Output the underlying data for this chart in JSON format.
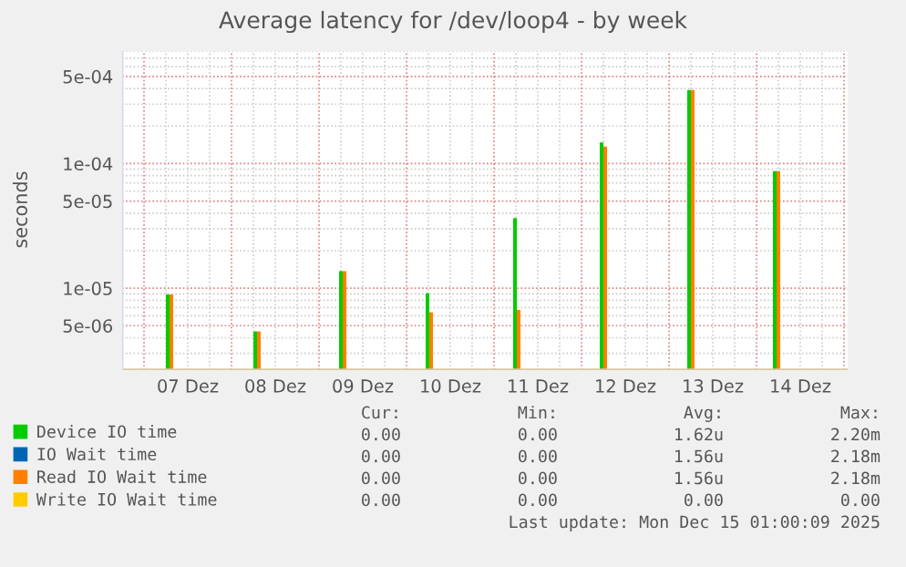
{
  "chart_data": {
    "type": "bar",
    "title": "Average latency for /dev/loop4 - by week",
    "ylabel": "seconds",
    "x": [
      "2025-12-07T07:00",
      "2025-12-08T07:00",
      "2025-12-09T06:30",
      "2025-12-10T06:15",
      "2025-12-11T06:15",
      "2025-12-12T06:00",
      "2025-12-13T06:00",
      "2025-12-14T05:30"
    ],
    "series": [
      {
        "name": "Device IO time",
        "color": "#00cc00",
        "values": [
          8.9e-06,
          4.5e-06,
          1.37e-05,
          9.1e-06,
          3.65e-05,
          0.000148,
          0.00039,
          8.7e-05
        ]
      },
      {
        "name": "IO Wait time",
        "color": "#0066b3",
        "values": [
          null,
          null,
          null,
          null,
          null,
          null,
          null,
          null
        ]
      },
      {
        "name": "Read IO Wait time",
        "color": "#ff8000",
        "values": [
          8.9e-06,
          4.5e-06,
          1.37e-05,
          6.4e-06,
          6.7e-06,
          0.000137,
          0.00039,
          8.7e-05
        ]
      },
      {
        "name": "Write IO Wait time",
        "color": "#ffcc00",
        "values": [
          null,
          null,
          null,
          null,
          null,
          null,
          null,
          null
        ]
      }
    ],
    "log": "y",
    "ylim": [
      2.2e-06,
      0.0008
    ],
    "yticks": [
      {
        "value": 5e-06,
        "label": "5e-06"
      },
      {
        "value": 1e-05,
        "label": "1e-05"
      },
      {
        "value": 5e-05,
        "label": "5e-05"
      },
      {
        "value": 0.0001,
        "label": "1e-04"
      },
      {
        "value": 0.0005,
        "label": "5e-04"
      }
    ],
    "xlim": [
      "2025-12-06T18:00",
      "2025-12-15T01:00"
    ],
    "xticks": [
      {
        "value": "2025-12-07T12:00",
        "label": "07 Dez"
      },
      {
        "value": "2025-12-08T12:00",
        "label": "08 Dez"
      },
      {
        "value": "2025-12-09T12:00",
        "label": "09 Dez"
      },
      {
        "value": "2025-12-10T12:00",
        "label": "10 Dez"
      },
      {
        "value": "2025-12-11T12:00",
        "label": "11 Dez"
      },
      {
        "value": "2025-12-12T12:00",
        "label": "12 Dez"
      },
      {
        "value": "2025-12-13T12:00",
        "label": "13 Dez"
      },
      {
        "value": "2025-12-14T12:00",
        "label": "14 Dez"
      }
    ],
    "grid": true,
    "legend": "bottom",
    "annotations": [
      "Cur:",
      "Min:",
      "Avg:",
      "Max:",
      "0.00",
      "0.00",
      "1.62u",
      "2.20m",
      "0.00",
      "0.00",
      "1.56u",
      "2.18m",
      "0.00",
      "0.00",
      "1.56u",
      "2.18m",
      "0.00",
      "0.00",
      "0.00",
      "0.00",
      "Last update: Mon Dec 15 01:00:09 2025"
    ]
  }
}
